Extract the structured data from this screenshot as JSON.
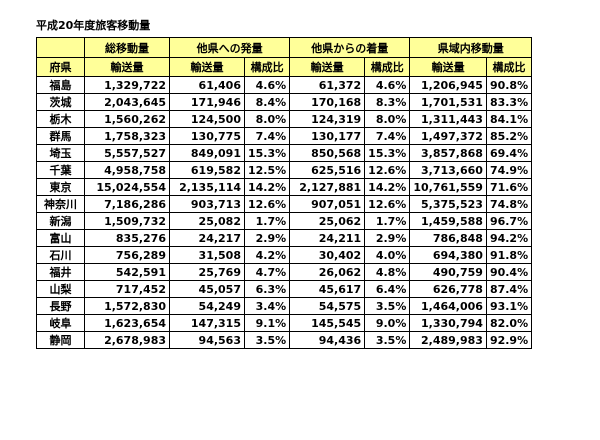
{
  "title": "平成20年度旅客移動量",
  "header": {
    "groups": {
      "total": "総移動量",
      "outbound": "他県への発量",
      "inbound": "他県からの着量",
      "internal": "県域内移動量"
    },
    "sub": {
      "prefecture": "府県",
      "volume1": "輸送量",
      "volume2": "輸送量",
      "ratio2": "構成比",
      "volume3": "輸送量",
      "ratio3": "構成比",
      "volume4": "輸送量",
      "ratio4": "構成比"
    }
  },
  "rows": [
    [
      "福島",
      "1,329,722",
      "61,406",
      "4.6%",
      "61,372",
      "4.6%",
      "1,206,945",
      "90.8%"
    ],
    [
      "茨城",
      "2,043,645",
      "171,946",
      "8.4%",
      "170,168",
      "8.3%",
      "1,701,531",
      "83.3%"
    ],
    [
      "栃木",
      "1,560,262",
      "124,500",
      "8.0%",
      "124,319",
      "8.0%",
      "1,311,443",
      "84.1%"
    ],
    [
      "群馬",
      "1,758,323",
      "130,775",
      "7.4%",
      "130,177",
      "7.4%",
      "1,497,372",
      "85.2%"
    ],
    [
      "埼玉",
      "5,557,527",
      "849,091",
      "15.3%",
      "850,568",
      "15.3%",
      "3,857,868",
      "69.4%"
    ],
    [
      "千葉",
      "4,958,758",
      "619,582",
      "12.5%",
      "625,516",
      "12.6%",
      "3,713,660",
      "74.9%"
    ],
    [
      "東京",
      "15,024,554",
      "2,135,114",
      "14.2%",
      "2,127,881",
      "14.2%",
      "10,761,559",
      "71.6%"
    ],
    [
      "神奈川",
      "7,186,286",
      "903,713",
      "12.6%",
      "907,051",
      "12.6%",
      "5,375,523",
      "74.8%"
    ],
    [
      "新潟",
      "1,509,732",
      "25,082",
      "1.7%",
      "25,062",
      "1.7%",
      "1,459,588",
      "96.7%"
    ],
    [
      "富山",
      "835,276",
      "24,217",
      "2.9%",
      "24,211",
      "2.9%",
      "786,848",
      "94.2%"
    ],
    [
      "石川",
      "756,289",
      "31,508",
      "4.2%",
      "30,402",
      "4.0%",
      "694,380",
      "91.8%"
    ],
    [
      "福井",
      "542,591",
      "25,769",
      "4.7%",
      "26,062",
      "4.8%",
      "490,759",
      "90.4%"
    ],
    [
      "山梨",
      "717,452",
      "45,057",
      "6.3%",
      "45,617",
      "6.4%",
      "626,778",
      "87.4%"
    ],
    [
      "長野",
      "1,572,830",
      "54,249",
      "3.4%",
      "54,575",
      "3.5%",
      "1,464,006",
      "93.1%"
    ],
    [
      "岐阜",
      "1,623,654",
      "147,315",
      "9.1%",
      "145,545",
      "9.0%",
      "1,330,794",
      "82.0%"
    ],
    [
      "静岡",
      "2,678,983",
      "94,563",
      "3.5%",
      "94,436",
      "3.5%",
      "2,489,983",
      "92.9%"
    ]
  ]
}
